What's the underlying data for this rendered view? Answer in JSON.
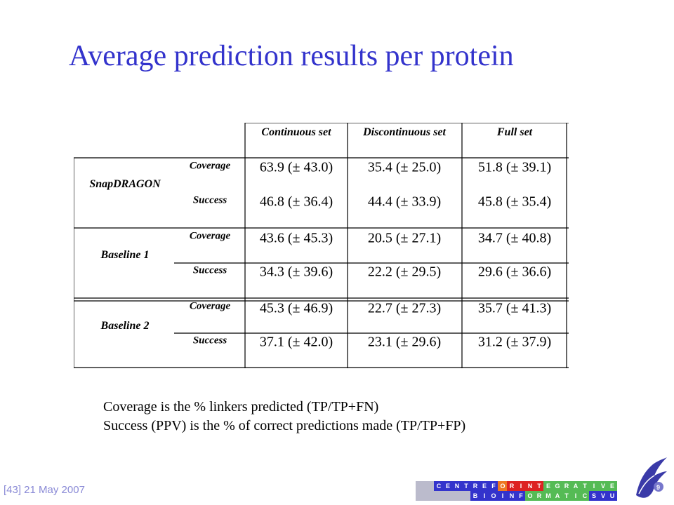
{
  "slide": {
    "title": "Average prediction results per protein",
    "footer": "[43] 21 May 2007"
  },
  "table": {
    "column_headers": [
      "Continuous set",
      "Discontinuous set",
      "Full set"
    ],
    "groups": [
      {
        "label": "SnapDRAGON",
        "rows": [
          {
            "metric": "Coverage",
            "values": [
              "63.9 (± 43.0)",
              "35.4 (± 25.0)",
              "51.8 (± 39.1)"
            ]
          },
          {
            "metric": "Success",
            "values": [
              "46.8 (± 36.4)",
              "44.4 (± 33.9)",
              "45.8 (± 35.4)"
            ]
          }
        ]
      },
      {
        "label": "Baseline 1",
        "rows": [
          {
            "metric": "Coverage",
            "values": [
              "43.6 (± 45.3)",
              "20.5 (± 27.1)",
              "34.7 (± 40.8)"
            ]
          },
          {
            "metric": "Success",
            "values": [
              "34.3 (± 39.6)",
              "22.2 (± 29.5)",
              "29.6 (± 36.6)"
            ]
          }
        ]
      },
      {
        "label": "Baseline 2",
        "rows": [
          {
            "metric": "Coverage",
            "values": [
              "45.3 (± 46.9)",
              "22.7 (± 27.3)",
              "35.7 (± 41.3)"
            ]
          },
          {
            "metric": "Success",
            "values": [
              "37.1 (± 42.0)",
              "23.1 (± 29.6)",
              "31.2 (± 37.9)"
            ]
          }
        ]
      }
    ]
  },
  "notes": [
    "Coverage is the % linkers predicted (TP/TP+FN)",
    "Success (PPV) is the % of correct predictions made (TP/TP+FP)"
  ],
  "logo": {
    "row1": [
      "C",
      "E",
      "N",
      "T",
      "R",
      "E",
      "F",
      "O",
      "R",
      "I",
      "N",
      "T",
      "E",
      "G",
      "R",
      "A",
      "T",
      "I",
      "V",
      "E"
    ],
    "row2": [
      "B",
      "I",
      "O",
      "I",
      "N",
      "F",
      "O",
      "R",
      "M",
      "A",
      "T",
      "I",
      "C",
      "S",
      "V",
      "U"
    ],
    "colors": {
      "blue": "#3333cc",
      "grey": "#bbbbcc",
      "green": "#55bb55",
      "orange": "#ee7722",
      "red": "#dd2222"
    }
  },
  "colors": {
    "title": "#3333cc",
    "footer": "#8a8ad6"
  }
}
